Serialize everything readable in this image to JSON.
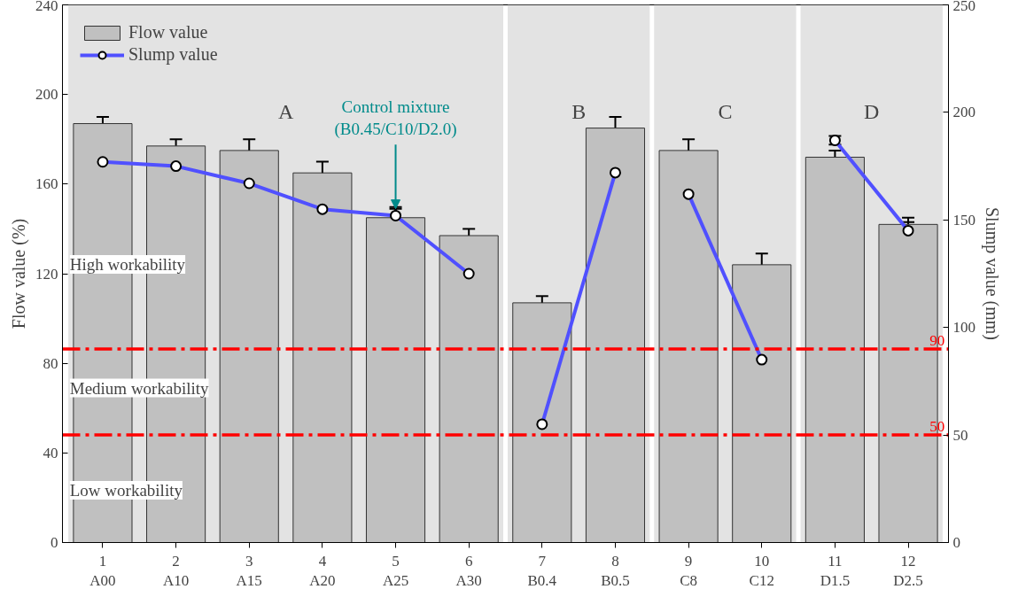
{
  "chart_data": {
    "type": "bar",
    "ylabel": "Flow value (%)",
    "y2label": "Slump value (mm)",
    "categories": [
      "1\nA00",
      "2\nA10",
      "3\nA15",
      "4\nA20",
      "5\nA25",
      "6\nA30",
      "7\nB0.4",
      "8\nB0.5",
      "9\nC8",
      "10\nC12",
      "11\nD1.5",
      "12\nD2.5"
    ],
    "series": [
      {
        "name": "Flow value",
        "color": "#c0c0c0",
        "values": [
          187,
          177,
          175,
          165,
          145,
          137,
          107,
          185,
          175,
          124,
          172,
          142
        ],
        "errors": [
          3,
          3,
          5,
          5,
          4,
          3,
          3,
          5,
          5,
          5,
          3,
          3
        ]
      },
      {
        "name": "Slump value",
        "type": "line",
        "axis": "y2",
        "color": "#5050ff",
        "marker": "circle",
        "values": [
          177,
          175,
          167,
          155,
          152,
          125,
          null,
          null,
          null,
          null,
          null,
          null
        ],
        "errors": [
          2,
          1,
          2,
          1,
          4,
          1,
          null,
          null,
          null,
          null,
          null,
          null
        ]
      },
      {
        "type": "line",
        "axis": "y2",
        "color": "#5050ff",
        "marker": "circle",
        "values": [
          null,
          null,
          null,
          null,
          null,
          null,
          55,
          172,
          null,
          null,
          null,
          null
        ],
        "errors": [
          null,
          null,
          null,
          null,
          null,
          null,
          1,
          2,
          null,
          null,
          null,
          null
        ]
      },
      {
        "type": "line",
        "axis": "y2",
        "color": "#5050ff",
        "marker": "circle",
        "values": [
          null,
          null,
          null,
          null,
          null,
          null,
          null,
          null,
          162,
          85,
          null,
          null
        ],
        "errors": [
          null,
          null,
          null,
          null,
          null,
          null,
          null,
          null,
          2,
          2,
          null,
          null
        ]
      },
      {
        "type": "line",
        "axis": "y2",
        "color": "#5050ff",
        "marker": "circle",
        "values": [
          null,
          null,
          null,
          null,
          null,
          null,
          null,
          null,
          null,
          null,
          187,
          145
        ],
        "errors": [
          null,
          null,
          null,
          null,
          null,
          null,
          null,
          null,
          null,
          null,
          2,
          4
        ]
      }
    ],
    "ylim": [
      0,
      240
    ],
    "yticks": [
      0,
      40,
      80,
      120,
      160,
      200,
      240
    ],
    "y2lim": [
      0,
      250
    ],
    "y2ticks": [
      0,
      50,
      100,
      150,
      200,
      250
    ],
    "bands": [
      {
        "axis": "x",
        "from": "1\nA00",
        "to": "6\nA30",
        "label": "A",
        "color": "#e3e3e3"
      },
      {
        "axis": "x",
        "from": "7\nB0.4",
        "to": "8\nB0.5",
        "label": "B",
        "color": "#e3e3e3"
      },
      {
        "axis": "x",
        "from": "9\nC8",
        "to": "10\nC12",
        "label": "C",
        "color": "#e3e3e3"
      },
      {
        "axis": "x",
        "from": "11\nD1.5",
        "to": "12\nD2.5",
        "label": "D",
        "color": "#e3e3e3"
      }
    ],
    "ref_lines": [
      {
        "axis": "y2",
        "value": 90,
        "label": "90",
        "color": "#ff0000",
        "line_style": "dashdot"
      },
      {
        "axis": "y2",
        "value": 50,
        "label": "50",
        "color": "#ff0000",
        "line_style": "dashdot"
      }
    ],
    "annotations": [
      "High workability",
      "Medium workability",
      "Low workability",
      {
        "text": "Control mixture\n(B0.45/C10/D2.0)",
        "x": "5\nA25",
        "y": 149
      }
    ],
    "legend": "top left",
    "grid": false
  }
}
